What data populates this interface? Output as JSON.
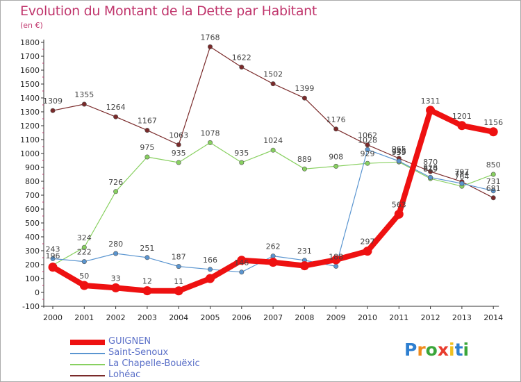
{
  "title": "Evolution du Montant de la Dette par Habitant",
  "subtitle": "(en €)",
  "chart_data": {
    "type": "line",
    "categories": [
      "2000",
      "2001",
      "2002",
      "2003",
      "2004",
      "2005",
      "2006",
      "2007",
      "2008",
      "2009",
      "2010",
      "2011",
      "2012",
      "2013",
      "2014"
    ],
    "ylim": [
      -100,
      1800
    ],
    "yticks": [
      -100,
      0,
      100,
      200,
      300,
      400,
      500,
      600,
      700,
      800,
      900,
      1000,
      1100,
      1200,
      1300,
      1400,
      1500,
      1600,
      1700,
      1800
    ],
    "grid": false,
    "legend_position": "bottom-left",
    "series": [
      {
        "name": "GUIGNEN",
        "color": "#ee1111",
        "width": 8,
        "values": [
          182,
          50,
          33,
          12,
          11,
          100,
          231,
          217,
          192,
          235,
          297,
          563,
          1311,
          1201,
          1156
        ],
        "labels": [
          "",
          "50",
          "33",
          "12",
          "11",
          "",
          "",
          "",
          "",
          "",
          "297",
          "563",
          "1311",
          "1201",
          "1156"
        ]
      },
      {
        "name": "Saint-Senoux",
        "color": "#5a95d0",
        "width": 1.2,
        "values": [
          243,
          222,
          280,
          251,
          187,
          166,
          146,
          262,
          231,
          188,
          1028,
          945,
          828,
          784,
          731
        ],
        "labels": [
          "243",
          "222",
          "280",
          "251",
          "187",
          "166",
          "146",
          "262",
          "231",
          "188",
          "1028",
          "945",
          "828",
          "784",
          "731"
        ]
      },
      {
        "name": "La Chapelle-Bouëxic",
        "color": "#88d060",
        "width": 1.2,
        "values": [
          196,
          324,
          726,
          975,
          935,
          1078,
          935,
          1024,
          889,
          908,
          929,
          939,
          819,
          764,
          850
        ],
        "labels": [
          "196",
          "324",
          "726",
          "975",
          "935",
          "1078",
          "935",
          "1024",
          "889",
          "908",
          "929",
          "939",
          "819",
          "764",
          "850"
        ]
      },
      {
        "name": "Lohéac",
        "color": "#7a2a2a",
        "width": 1.2,
        "values": [
          1309,
          1355,
          1264,
          1167,
          1063,
          1768,
          1622,
          1502,
          1399,
          1176,
          1062,
          965,
          870,
          797,
          681
        ],
        "labels": [
          "1309",
          "1355",
          "1264",
          "1167",
          "1063",
          "1768",
          "1622",
          "1502",
          "1399",
          "1176",
          "1062",
          "965",
          "870",
          "797",
          "681"
        ]
      }
    ]
  },
  "logo": {
    "text": "Proxiti",
    "letters": [
      {
        "ch": "P",
        "color": "#2e7fd0"
      },
      {
        "ch": "r",
        "color": "#f08a1c"
      },
      {
        "ch": "o",
        "color": "#3aa63a"
      },
      {
        "ch": "x",
        "color": "#e83c2e"
      },
      {
        "ch": "i",
        "color": "#f0c020"
      },
      {
        "ch": "t",
        "color": "#2e7fd0"
      },
      {
        "ch": "i",
        "color": "#3aa63a"
      }
    ]
  }
}
